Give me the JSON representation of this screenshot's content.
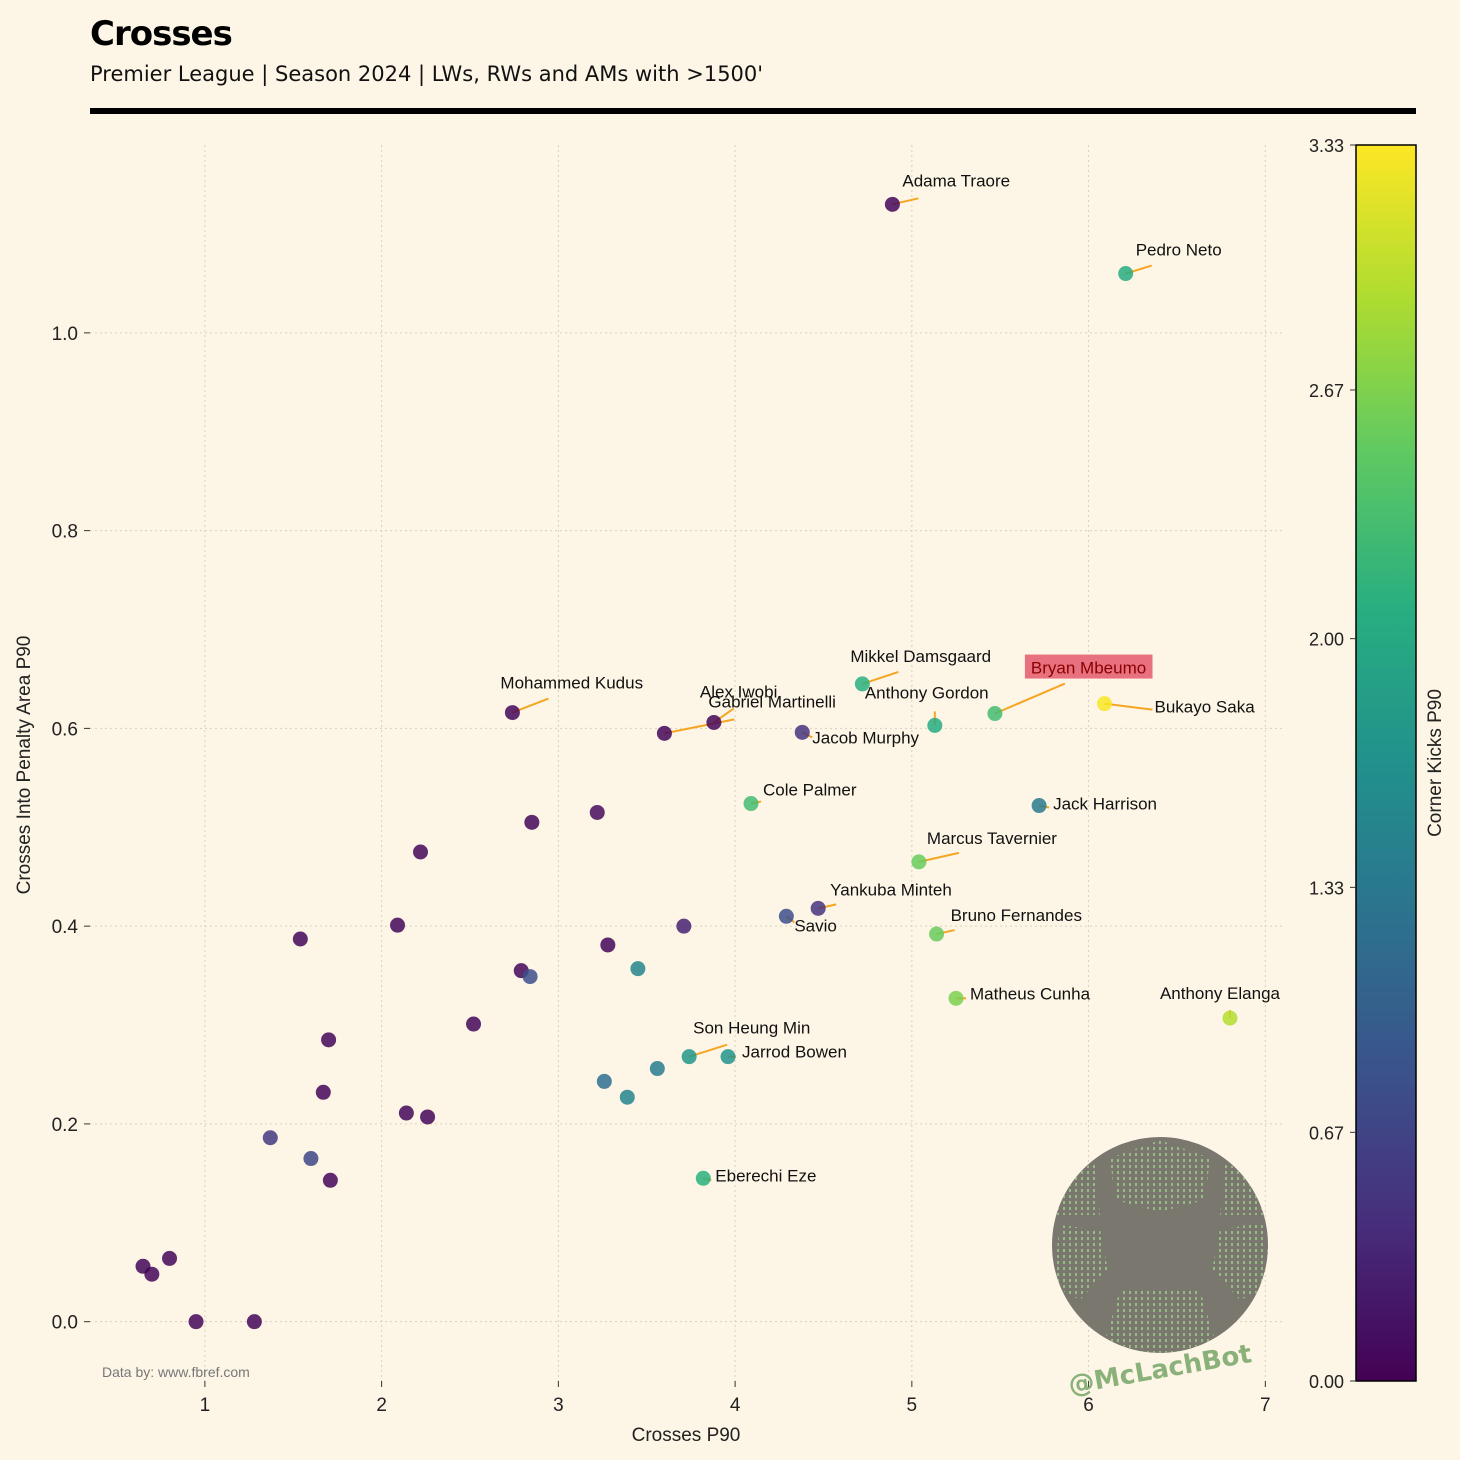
{
  "header": {
    "title": "Crosses",
    "subtitle": "Premier League | Season 2024 | LWs, RWs and AMs with >1500'"
  },
  "source_note": "Data by: www.fbref.com",
  "watermark": "@McLachBot",
  "colorbar": {
    "label": "Corner Kicks P90",
    "ticks": [
      0.0,
      0.67,
      1.33,
      2.0,
      2.67,
      3.33
    ],
    "tick_labels": [
      "0.00",
      "0.67",
      "1.33",
      "2.00",
      "2.67",
      "3.33"
    ],
    "min": 0.0,
    "max": 3.33,
    "colormap": "viridis"
  },
  "colors": {
    "background": "#fdf5e6",
    "leader_line": "#f5a623",
    "highlight_box": "#e8717f",
    "highlight_text": "#8b0000"
  },
  "chart_data": {
    "type": "scatter",
    "title": "Crosses",
    "xlabel": "Crosses P90",
    "ylabel": "Crosses Into Penalty Area P90",
    "xlim": [
      0.35,
      7.1
    ],
    "ylim": [
      -0.06,
      1.19
    ],
    "xticks": [
      1,
      2,
      3,
      4,
      5,
      6,
      7
    ],
    "yticks": [
      0.0,
      0.2,
      0.4,
      0.6,
      0.8,
      1.0
    ],
    "ytick_labels": [
      "0.0",
      "0.2",
      "0.4",
      "0.6",
      "0.8",
      "1.0"
    ],
    "grid": true,
    "points": [
      {
        "x": 4.89,
        "y": 1.13,
        "c": 0.05,
        "label": "Adama Traore"
      },
      {
        "x": 6.21,
        "y": 1.06,
        "c": 2.05,
        "label": "Pedro Neto"
      },
      {
        "x": 4.72,
        "y": 0.645,
        "c": 2.1,
        "label": "Mikkel Damsgaard"
      },
      {
        "x": 5.47,
        "y": 0.615,
        "c": 2.3,
        "label": "Bryan Mbeumo",
        "highlight": true
      },
      {
        "x": 6.09,
        "y": 0.625,
        "c": 3.3,
        "label": "Bukayo Saka"
      },
      {
        "x": 5.13,
        "y": 0.603,
        "c": 2.05,
        "label": "Anthony Gordon"
      },
      {
        "x": 2.74,
        "y": 0.616,
        "c": 0.05,
        "label": "Mohammed Kudus"
      },
      {
        "x": 3.88,
        "y": 0.606,
        "c": 0.05,
        "label": "Alex Iwobi"
      },
      {
        "x": 3.6,
        "y": 0.595,
        "c": 0.05,
        "label": "Gabriel Martinelli"
      },
      {
        "x": 4.38,
        "y": 0.596,
        "c": 0.5,
        "label": "Jacob Murphy"
      },
      {
        "x": 4.09,
        "y": 0.524,
        "c": 2.3,
        "label": "Cole Palmer"
      },
      {
        "x": 5.72,
        "y": 0.522,
        "c": 1.35,
        "label": "Jack Harrison"
      },
      {
        "x": 5.04,
        "y": 0.465,
        "c": 2.55,
        "label": "Marcus Tavernier"
      },
      {
        "x": 4.47,
        "y": 0.418,
        "c": 0.5,
        "label": "Yankuba Minteh"
      },
      {
        "x": 4.29,
        "y": 0.41,
        "c": 0.8,
        "label": "Savio"
      },
      {
        "x": 5.14,
        "y": 0.392,
        "c": 2.55,
        "label": "Bruno Fernandes"
      },
      {
        "x": 5.25,
        "y": 0.327,
        "c": 2.65,
        "label": "Matheus Cunha"
      },
      {
        "x": 6.8,
        "y": 0.307,
        "c": 2.95,
        "label": "Anthony Elanga"
      },
      {
        "x": 3.74,
        "y": 0.268,
        "c": 1.75,
        "label": "Son Heung Min"
      },
      {
        "x": 3.96,
        "y": 0.268,
        "c": 1.7,
        "label": "Jarrod Bowen"
      },
      {
        "x": 3.82,
        "y": 0.145,
        "c": 2.1,
        "label": "Eberechi Eze"
      },
      {
        "x": 2.85,
        "y": 0.505,
        "c": 0.05
      },
      {
        "x": 3.22,
        "y": 0.515,
        "c": 0.1
      },
      {
        "x": 2.22,
        "y": 0.475,
        "c": 0.05
      },
      {
        "x": 1.54,
        "y": 0.387,
        "c": 0.05
      },
      {
        "x": 2.09,
        "y": 0.401,
        "c": 0.05
      },
      {
        "x": 3.71,
        "y": 0.4,
        "c": 0.3
      },
      {
        "x": 3.28,
        "y": 0.381,
        "c": 0.05
      },
      {
        "x": 3.45,
        "y": 0.357,
        "c": 1.5
      },
      {
        "x": 2.79,
        "y": 0.355,
        "c": 0.05
      },
      {
        "x": 2.84,
        "y": 0.349,
        "c": 0.8
      },
      {
        "x": 2.52,
        "y": 0.301,
        "c": 0.05
      },
      {
        "x": 1.7,
        "y": 0.285,
        "c": 0.05
      },
      {
        "x": 3.56,
        "y": 0.256,
        "c": 1.4
      },
      {
        "x": 3.26,
        "y": 0.243,
        "c": 1.2
      },
      {
        "x": 3.39,
        "y": 0.227,
        "c": 1.5
      },
      {
        "x": 1.67,
        "y": 0.232,
        "c": 0.05
      },
      {
        "x": 2.14,
        "y": 0.211,
        "c": 0.05
      },
      {
        "x": 2.26,
        "y": 0.207,
        "c": 0.05
      },
      {
        "x": 1.37,
        "y": 0.186,
        "c": 0.55
      },
      {
        "x": 1.6,
        "y": 0.165,
        "c": 0.7
      },
      {
        "x": 1.71,
        "y": 0.143,
        "c": 0.05
      },
      {
        "x": 0.65,
        "y": 0.056,
        "c": 0.05
      },
      {
        "x": 0.8,
        "y": 0.064,
        "c": 0.05
      },
      {
        "x": 0.7,
        "y": 0.048,
        "c": 0.05
      },
      {
        "x": 0.95,
        "y": 0.0,
        "c": 0.05
      },
      {
        "x": 1.28,
        "y": 0.0,
        "c": 0.05
      }
    ]
  }
}
